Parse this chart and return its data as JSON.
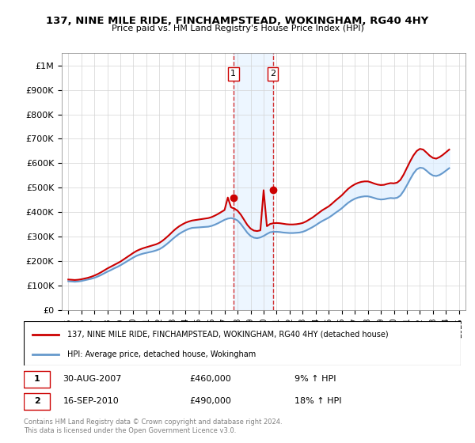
{
  "title": "137, NINE MILE RIDE, FINCHAMPSTEAD, WOKINGHAM, RG40 4HY",
  "subtitle": "Price paid vs. HM Land Registry's House Price Index (HPI)",
  "legend_line1": "137, NINE MILE RIDE, FINCHAMPSTEAD, WOKINGHAM, RG40 4HY (detached house)",
  "legend_line2": "HPI: Average price, detached house, Wokingham",
  "footer1": "Contains HM Land Registry data © Crown copyright and database right 2024.",
  "footer2": "This data is licensed under the Open Government Licence v3.0.",
  "transaction1_label": "1",
  "transaction1_date": "30-AUG-2007",
  "transaction1_price": "£460,000",
  "transaction1_hpi": "9% ↑ HPI",
  "transaction2_label": "2",
  "transaction2_date": "16-SEP-2010",
  "transaction2_price": "£490,000",
  "transaction2_hpi": "18% ↑ HPI",
  "red_color": "#cc0000",
  "blue_color": "#6699cc",
  "shade_color": "#ddeeff",
  "ylim": [
    0,
    1050000
  ],
  "yticks": [
    0,
    100000,
    200000,
    300000,
    400000,
    500000,
    600000,
    700000,
    800000,
    900000,
    1000000
  ],
  "ytick_labels": [
    "£0",
    "£100K",
    "£200K",
    "£300K",
    "£400K",
    "£500K",
    "£600K",
    "£700K",
    "£800K",
    "£900K",
    "£1M"
  ],
  "years": [
    1995,
    1996,
    1997,
    1998,
    1999,
    2000,
    2001,
    2002,
    2003,
    2004,
    2005,
    2006,
    2007,
    2008,
    2009,
    2010,
    2011,
    2012,
    2013,
    2014,
    2015,
    2016,
    2017,
    2018,
    2019,
    2020,
    2021,
    2022,
    2023,
    2024,
    2025
  ],
  "hpi_years": [
    1995.0,
    1995.25,
    1995.5,
    1995.75,
    1996.0,
    1996.25,
    1996.5,
    1996.75,
    1997.0,
    1997.25,
    1997.5,
    1997.75,
    1998.0,
    1998.25,
    1998.5,
    1998.75,
    1999.0,
    1999.25,
    1999.5,
    1999.75,
    2000.0,
    2000.25,
    2000.5,
    2000.75,
    2001.0,
    2001.25,
    2001.5,
    2001.75,
    2002.0,
    2002.25,
    2002.5,
    2002.75,
    2003.0,
    2003.25,
    2003.5,
    2003.75,
    2004.0,
    2004.25,
    2004.5,
    2004.75,
    2005.0,
    2005.25,
    2005.5,
    2005.75,
    2006.0,
    2006.25,
    2006.5,
    2006.75,
    2007.0,
    2007.25,
    2007.5,
    2007.75,
    2008.0,
    2008.25,
    2008.5,
    2008.75,
    2009.0,
    2009.25,
    2009.5,
    2009.75,
    2010.0,
    2010.25,
    2010.5,
    2010.75,
    2011.0,
    2011.25,
    2011.5,
    2011.75,
    2012.0,
    2012.25,
    2012.5,
    2012.75,
    2013.0,
    2013.25,
    2013.5,
    2013.75,
    2014.0,
    2014.25,
    2014.5,
    2014.75,
    2015.0,
    2015.25,
    2015.5,
    2015.75,
    2016.0,
    2016.25,
    2016.5,
    2016.75,
    2017.0,
    2017.25,
    2017.5,
    2017.75,
    2018.0,
    2018.25,
    2018.5,
    2018.75,
    2019.0,
    2019.25,
    2019.5,
    2019.75,
    2020.0,
    2020.25,
    2020.5,
    2020.75,
    2021.0,
    2021.25,
    2021.5,
    2021.75,
    2022.0,
    2022.25,
    2022.5,
    2022.75,
    2023.0,
    2023.25,
    2023.5,
    2023.75,
    2024.0,
    2024.25
  ],
  "hpi_values": [
    118000,
    117000,
    116000,
    117000,
    119000,
    122000,
    125000,
    128000,
    132000,
    137000,
    143000,
    150000,
    157000,
    163000,
    170000,
    176000,
    183000,
    191000,
    199000,
    207000,
    215000,
    222000,
    227000,
    231000,
    234000,
    237000,
    240000,
    244000,
    249000,
    257000,
    267000,
    278000,
    290000,
    301000,
    311000,
    319000,
    326000,
    332000,
    336000,
    337000,
    338000,
    339000,
    340000,
    341000,
    344000,
    349000,
    355000,
    362000,
    369000,
    374000,
    376000,
    373000,
    366000,
    352000,
    334000,
    316000,
    303000,
    296000,
    294000,
    297000,
    303000,
    311000,
    318000,
    320000,
    320000,
    319000,
    317000,
    316000,
    315000,
    315000,
    316000,
    317000,
    320000,
    325000,
    332000,
    339000,
    347000,
    356000,
    364000,
    371000,
    378000,
    387000,
    397000,
    406000,
    416000,
    428000,
    439000,
    448000,
    455000,
    460000,
    463000,
    465000,
    465000,
    462000,
    458000,
    454000,
    452000,
    453000,
    456000,
    458000,
    457000,
    459000,
    468000,
    487000,
    510000,
    535000,
    558000,
    575000,
    582000,
    580000,
    570000,
    558000,
    550000,
    548000,
    552000,
    560000,
    570000,
    580000
  ],
  "red_years": [
    1995.0,
    1995.25,
    1995.5,
    1995.75,
    1996.0,
    1996.25,
    1996.5,
    1996.75,
    1997.0,
    1997.25,
    1997.5,
    1997.75,
    1998.0,
    1998.25,
    1998.5,
    1998.75,
    1999.0,
    1999.25,
    1999.5,
    1999.75,
    2000.0,
    2000.25,
    2000.5,
    2000.75,
    2001.0,
    2001.25,
    2001.5,
    2001.75,
    2002.0,
    2002.25,
    2002.5,
    2002.75,
    2003.0,
    2003.25,
    2003.5,
    2003.75,
    2004.0,
    2004.25,
    2004.5,
    2004.75,
    2005.0,
    2005.25,
    2005.5,
    2005.75,
    2006.0,
    2006.25,
    2006.5,
    2006.75,
    2007.0,
    2007.25,
    2007.5,
    2007.75,
    2008.0,
    2008.25,
    2008.5,
    2008.75,
    2009.0,
    2009.25,
    2009.5,
    2009.75,
    2010.0,
    2010.25,
    2010.5,
    2010.75,
    2011.0,
    2011.25,
    2011.5,
    2011.75,
    2012.0,
    2012.25,
    2012.5,
    2012.75,
    2013.0,
    2013.25,
    2013.5,
    2013.75,
    2014.0,
    2014.25,
    2014.5,
    2014.75,
    2015.0,
    2015.25,
    2015.5,
    2015.75,
    2016.0,
    2016.25,
    2016.5,
    2016.75,
    2017.0,
    2017.25,
    2017.5,
    2017.75,
    2018.0,
    2018.25,
    2018.5,
    2018.75,
    2019.0,
    2019.25,
    2019.5,
    2019.75,
    2020.0,
    2020.25,
    2020.5,
    2020.75,
    2021.0,
    2021.25,
    2021.5,
    2021.75,
    2022.0,
    2022.25,
    2022.5,
    2022.75,
    2023.0,
    2023.25,
    2023.5,
    2023.75,
    2024.0,
    2024.25
  ],
  "red_values": [
    125000,
    124000,
    123000,
    124000,
    126000,
    129000,
    132000,
    136000,
    141000,
    147000,
    154000,
    162000,
    170000,
    177000,
    184000,
    191000,
    198000,
    207000,
    216000,
    225000,
    234000,
    242000,
    248000,
    253000,
    257000,
    261000,
    265000,
    269000,
    275000,
    284000,
    295000,
    307000,
    320000,
    332000,
    342000,
    350000,
    357000,
    362000,
    366000,
    368000,
    370000,
    372000,
    374000,
    376000,
    380000,
    386000,
    393000,
    401000,
    409000,
    460000,
    420000,
    415000,
    406000,
    390000,
    369000,
    348000,
    333000,
    325000,
    323000,
    326000,
    490000,
    343000,
    352000,
    355000,
    356000,
    355000,
    353000,
    351000,
    350000,
    350000,
    351000,
    353000,
    356000,
    362000,
    370000,
    378000,
    388000,
    398000,
    408000,
    416000,
    424000,
    435000,
    447000,
    458000,
    469000,
    483000,
    496000,
    506000,
    514000,
    520000,
    524000,
    526000,
    526000,
    522000,
    517000,
    513000,
    511000,
    512000,
    516000,
    519000,
    518000,
    521000,
    532000,
    554000,
    581000,
    608000,
    632000,
    650000,
    659000,
    656000,
    644000,
    631000,
    622000,
    619000,
    625000,
    634000,
    645000,
    656000
  ],
  "transaction1_x": 2007.67,
  "transaction1_y": 460000,
  "transaction2_x": 2010.7,
  "transaction2_y": 490000,
  "vline1_x": 2007.67,
  "vline2_x": 2010.7,
  "xlim": [
    1994.5,
    2025.5
  ]
}
